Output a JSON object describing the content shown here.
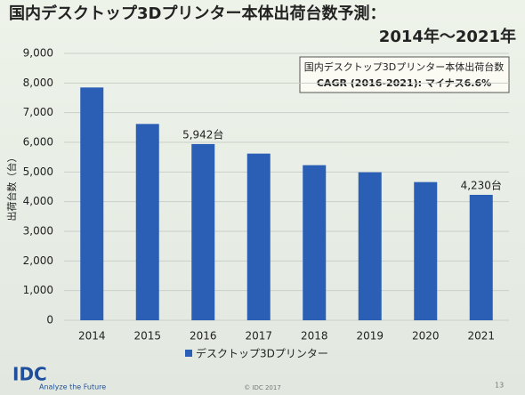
{
  "chart_data": {
    "type": "bar",
    "title": "国内デスクトップ3Dプリンター本体出荷台数予測：",
    "subtitle": "2014年～2021年",
    "y_label": "出荷台数（台）",
    "categories": [
      "2014",
      "2015",
      "2016",
      "2017",
      "2018",
      "2019",
      "2020",
      "2021"
    ],
    "series": [
      {
        "name": "デスクトップ3Dプリンター",
        "color": "#2a5fb5",
        "values": [
          7850,
          6620,
          5942,
          5620,
          5230,
          4990,
          4660,
          4230
        ],
        "value_labels": [
          null,
          null,
          "5,942台",
          null,
          null,
          null,
          null,
          "4,230台"
        ]
      }
    ],
    "ylim": [
      0,
      9000
    ],
    "yticks": [
      0,
      {
        "value": 1000,
        "label": "1,000"
      },
      {
        "value": 2000,
        "label": "2,000"
      },
      {
        "value": 3000,
        "label": "3,000"
      },
      {
        "value": 4000,
        "label": "4,000"
      },
      {
        "value": 5000,
        "label": "5,000"
      },
      {
        "value": 6000,
        "label": "6,000"
      },
      {
        "value": 7000,
        "label": "7,000"
      },
      {
        "value": 8000,
        "label": "8,000"
      },
      {
        "value": 9000,
        "label": "9,000"
      }
    ],
    "grid": true,
    "annotations": [
      "国内デスクトップ3Dプリンター本体出荷台数",
      "CAGR (2016-2021): マイナス6.6%"
    ]
  },
  "footer": {
    "logo": "IDC",
    "tagline": "Analyze the Future",
    "copyright": "© IDC 2017",
    "page": "13"
  }
}
